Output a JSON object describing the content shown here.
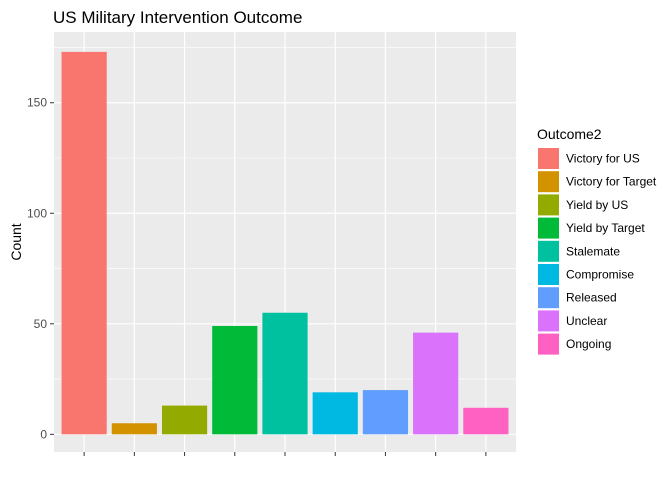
{
  "chart_data": {
    "type": "bar",
    "title": "US Military Intervention Outcome",
    "xlabel": "",
    "ylabel": "Count",
    "ylim": [
      -8,
      182
    ],
    "yticks": [
      0,
      50,
      100,
      150
    ],
    "grid": true,
    "legend_position": "right",
    "legend_title": "Outcome2",
    "categories": [
      "Victory for US",
      "Victory for Target",
      "Yield by US",
      "Yield by Target",
      "Stalemate",
      "Compromise",
      "Released",
      "Unclear",
      "Ongoing"
    ],
    "values": [
      173,
      5,
      13,
      49,
      55,
      19,
      20,
      46,
      12
    ],
    "colors": [
      "#F8766D",
      "#D39200",
      "#93AA00",
      "#00BA38",
      "#00C19F",
      "#00B9E3",
      "#619CFF",
      "#DB72FB",
      "#FF61C3"
    ]
  },
  "theme": {
    "panel_background": "#EBEBEB",
    "grid_major": "#FFFFFF",
    "tick_text": "#4D4D4D"
  }
}
